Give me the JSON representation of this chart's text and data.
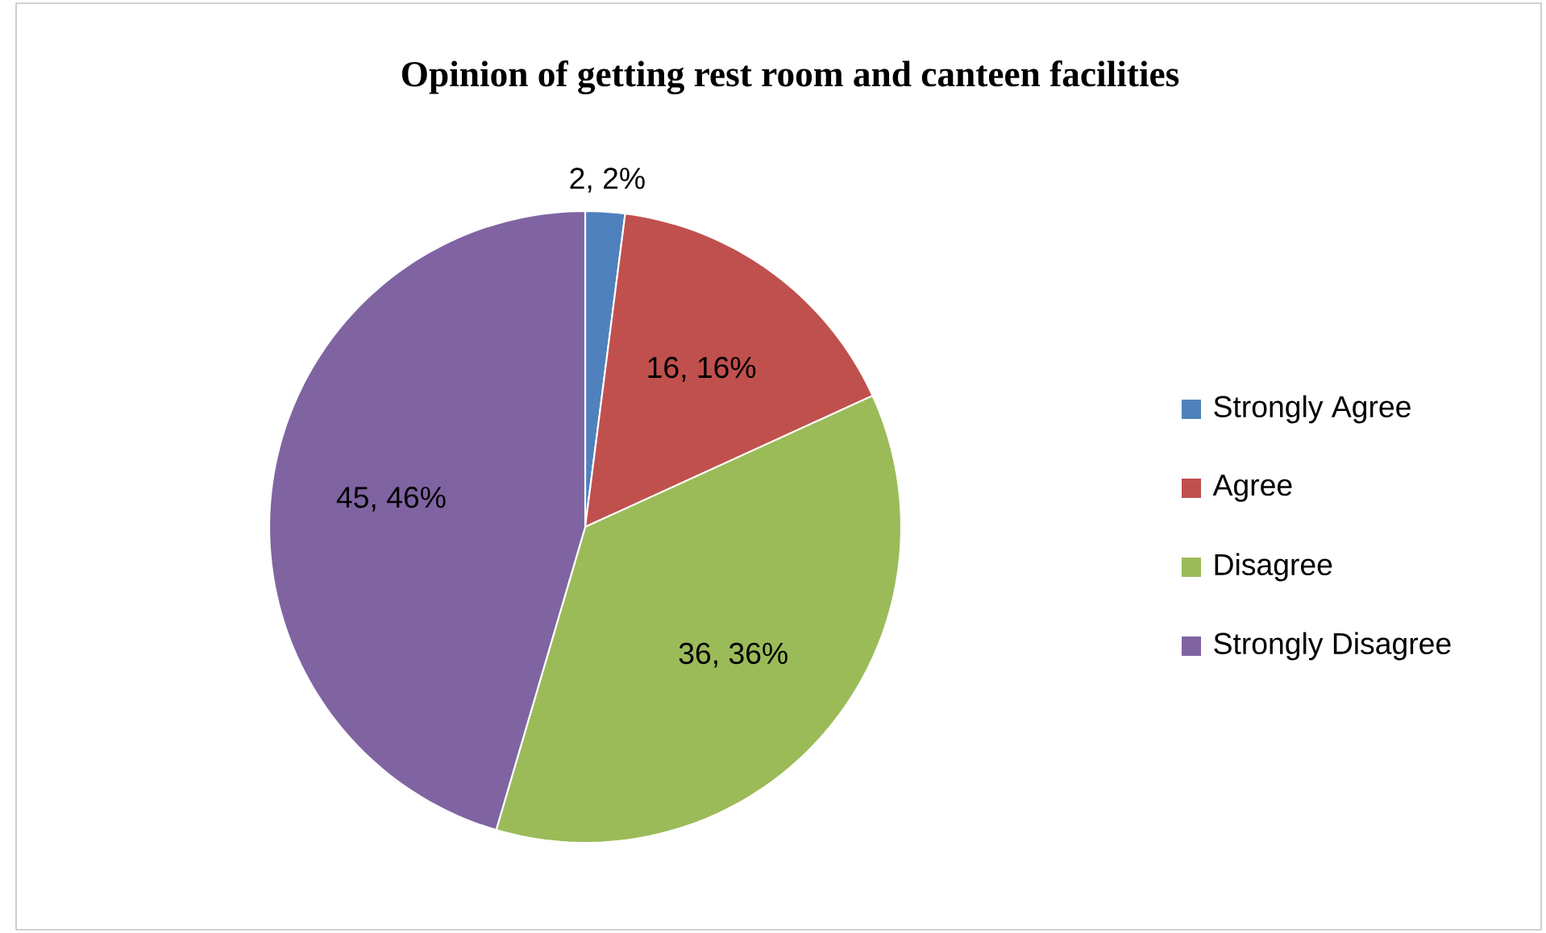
{
  "chart_data": {
    "type": "pie",
    "title": "Opinion of getting rest room and canteen facilities",
    "categories": [
      "Strongly Agree",
      "Agree",
      "Disagree",
      "Strongly Disagree"
    ],
    "values": [
      2,
      16,
      36,
      45
    ],
    "colors": [
      "#4f81bd",
      "#c0504d",
      "#9bbb59",
      "#8064a2"
    ],
    "value_labels": [
      "2, 2%",
      "16, 16%",
      "36, 36%",
      "45, 46%"
    ],
    "legend": "right"
  }
}
